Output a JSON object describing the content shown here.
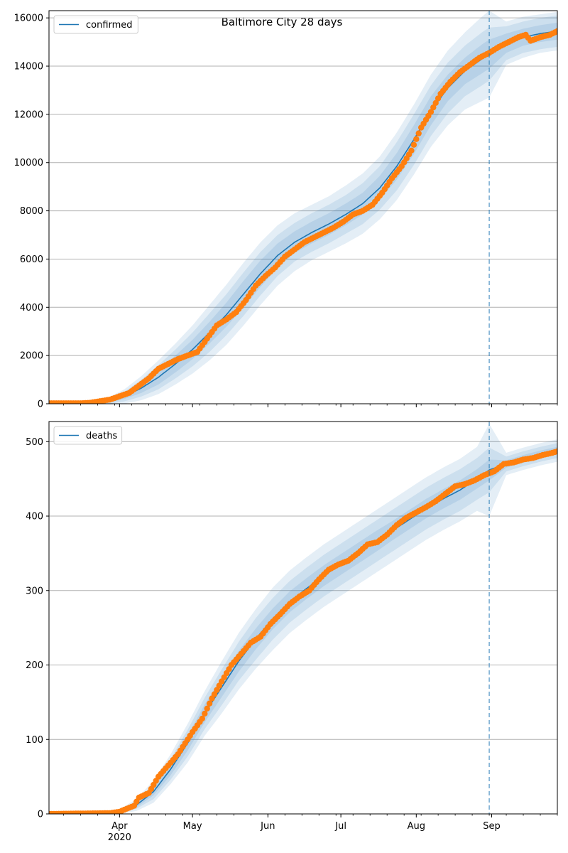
{
  "figure": {
    "suptitle": "Baltimore City 28 days"
  },
  "colors": {
    "model_line": "#1f77b4",
    "band": "#1f77b4",
    "observed": "#ff7f0e",
    "grid": "#b0b0b0",
    "axes": "#000000",
    "vline": "#1f77b4"
  },
  "chart_data": [
    {
      "type": "line",
      "name": "confirmed-panel",
      "legend": {
        "label": "confirmed",
        "placement": "upper-left"
      },
      "xlim": [
        "2020-03-03",
        "2020-09-28"
      ],
      "ylim": [
        0,
        16300
      ],
      "yticks": [
        0,
        2000,
        4000,
        6000,
        8000,
        10000,
        12000,
        14000,
        16000
      ],
      "grid": "y",
      "forecast_start": "2020-08-31",
      "model": {
        "x": [
          "2020-03-03",
          "2020-03-20",
          "2020-03-27",
          "2020-04-03",
          "2020-04-10",
          "2020-04-17",
          "2020-04-24",
          "2020-05-01",
          "2020-05-08",
          "2020-05-15",
          "2020-05-22",
          "2020-05-29",
          "2020-06-05",
          "2020-06-12",
          "2020-06-19",
          "2020-06-26",
          "2020-07-03",
          "2020-07-10",
          "2020-07-17",
          "2020-07-24",
          "2020-07-31",
          "2020-08-07",
          "2020-08-14",
          "2020-08-21",
          "2020-08-28",
          "2020-08-31",
          "2020-09-07",
          "2020-09-14",
          "2020-09-21",
          "2020-09-28"
        ],
        "y": [
          0,
          0,
          80,
          300,
          650,
          1100,
          1650,
          2250,
          2950,
          3700,
          4550,
          5400,
          6150,
          6700,
          7100,
          7450,
          7850,
          8300,
          8950,
          9850,
          10950,
          12150,
          13100,
          13800,
          14300,
          14500,
          14950,
          15200,
          15350,
          15450
        ],
        "band_halfwidths": [
          [
            0,
            0,
            50,
            100,
            200,
            300,
            350,
            400,
            450,
            500,
            550,
            550,
            500,
            450,
            450,
            450,
            450,
            450,
            500,
            550,
            600,
            600,
            550,
            550,
            600,
            600,
            400,
            350,
            350,
            350
          ],
          [
            0,
            0,
            100,
            200,
            350,
            500,
            600,
            700,
            800,
            850,
            900,
            900,
            850,
            800,
            800,
            800,
            800,
            850,
            900,
            1000,
            1050,
            1050,
            1050,
            1050,
            1100,
            1100,
            700,
            650,
            650,
            650
          ],
          [
            0,
            0,
            150,
            300,
            500,
            700,
            850,
            1000,
            1150,
            1250,
            1300,
            1300,
            1250,
            1200,
            1150,
            1150,
            1200,
            1250,
            1300,
            1400,
            1450,
            1500,
            1550,
            1600,
            1750,
            1800,
            900,
            850,
            800,
            800
          ]
        ]
      },
      "observed": {
        "x": [
          "2020-03-03",
          "2020-03-16",
          "2020-03-20",
          "2020-03-24",
          "2020-03-28",
          "2020-04-01",
          "2020-04-05",
          "2020-04-09",
          "2020-04-13",
          "2020-04-17",
          "2020-04-21",
          "2020-04-25",
          "2020-04-29",
          "2020-05-03",
          "2020-05-07",
          "2020-05-11",
          "2020-05-15",
          "2020-05-19",
          "2020-05-23",
          "2020-05-27",
          "2020-05-31",
          "2020-06-04",
          "2020-06-08",
          "2020-06-12",
          "2020-06-16",
          "2020-06-20",
          "2020-06-24",
          "2020-06-28",
          "2020-07-02",
          "2020-07-06",
          "2020-07-10",
          "2020-07-14",
          "2020-07-18",
          "2020-07-22",
          "2020-07-26",
          "2020-07-30",
          "2020-08-03",
          "2020-08-07",
          "2020-08-11",
          "2020-08-15",
          "2020-08-19",
          "2020-08-23",
          "2020-08-27",
          "2020-08-31",
          "2020-09-04",
          "2020-09-08",
          "2020-09-12",
          "2020-09-15",
          "2020-09-17",
          "2020-09-21",
          "2020-09-25",
          "2020-09-28"
        ],
        "y": [
          20,
          20,
          40,
          110,
          170,
          310,
          450,
          750,
          1050,
          1450,
          1650,
          1850,
          2000,
          2150,
          2700,
          3250,
          3500,
          3800,
          4300,
          4900,
          5300,
          5650,
          6100,
          6400,
          6700,
          6900,
          7100,
          7300,
          7550,
          7850,
          8000,
          8250,
          8750,
          9350,
          9850,
          10500,
          11450,
          12100,
          12850,
          13350,
          13750,
          14050,
          14350,
          14550,
          14800,
          15000,
          15200,
          15300,
          15050,
          15200,
          15300,
          15450
        ]
      }
    },
    {
      "type": "line",
      "name": "deaths-panel",
      "legend": {
        "label": "deaths",
        "placement": "upper-left"
      },
      "xlim": [
        "2020-03-03",
        "2020-09-28"
      ],
      "ylim": [
        0,
        527
      ],
      "yticks": [
        0,
        100,
        200,
        300,
        400,
        500
      ],
      "xtick_labels": [
        "Apr",
        "May",
        "Jun",
        "Jul",
        "Aug",
        "Sep"
      ],
      "xtick_dates": [
        "2020-04-01",
        "2020-05-01",
        "2020-06-01",
        "2020-07-01",
        "2020-08-01",
        "2020-09-01"
      ],
      "x_year_label": "2020",
      "grid": "y",
      "forecast_start": "2020-08-31",
      "model": {
        "x": [
          "2020-03-03",
          "2020-03-25",
          "2020-04-01",
          "2020-04-08",
          "2020-04-15",
          "2020-04-22",
          "2020-04-29",
          "2020-05-06",
          "2020-05-13",
          "2020-05-20",
          "2020-05-27",
          "2020-06-03",
          "2020-06-10",
          "2020-06-17",
          "2020-06-24",
          "2020-07-01",
          "2020-07-08",
          "2020-07-15",
          "2020-07-22",
          "2020-07-29",
          "2020-08-05",
          "2020-08-12",
          "2020-08-19",
          "2020-08-26",
          "2020-08-31",
          "2020-09-07",
          "2020-09-14",
          "2020-09-21",
          "2020-09-28"
        ],
        "y": [
          0,
          0,
          3,
          12,
          30,
          60,
          95,
          135,
          170,
          205,
          235,
          262,
          285,
          303,
          320,
          335,
          350,
          365,
          380,
          395,
          410,
          423,
          435,
          450,
          462,
          470,
          477,
          483,
          488
        ],
        "band_halfwidths": [
          [
            0,
            0,
            1,
            3,
            5,
            8,
            10,
            12,
            13,
            14,
            14,
            14,
            14,
            14,
            14,
            14,
            14,
            14,
            13,
            13,
            13,
            13,
            13,
            13,
            14,
            5,
            5,
            5,
            5
          ],
          [
            0,
            0,
            2,
            5,
            10,
            14,
            18,
            21,
            24,
            26,
            28,
            28,
            28,
            28,
            28,
            28,
            28,
            28,
            28,
            28,
            28,
            28,
            28,
            28,
            30,
            10,
            10,
            10,
            10
          ],
          [
            0,
            0,
            3,
            8,
            15,
            20,
            26,
            30,
            35,
            38,
            40,
            42,
            42,
            42,
            42,
            42,
            42,
            42,
            42,
            42,
            42,
            42,
            42,
            43,
            62,
            15,
            15,
            15,
            15
          ]
        ]
      },
      "observed": {
        "x": [
          "2020-03-03",
          "2020-03-28",
          "2020-04-01",
          "2020-04-04",
          "2020-04-07",
          "2020-04-09",
          "2020-04-13",
          "2020-04-17",
          "2020-04-21",
          "2020-04-25",
          "2020-04-29",
          "2020-05-01",
          "2020-05-05",
          "2020-05-09",
          "2020-05-13",
          "2020-05-17",
          "2020-05-21",
          "2020-05-25",
          "2020-05-29",
          "2020-06-02",
          "2020-06-06",
          "2020-06-10",
          "2020-06-14",
          "2020-06-18",
          "2020-06-22",
          "2020-06-26",
          "2020-06-30",
          "2020-07-04",
          "2020-07-08",
          "2020-07-12",
          "2020-07-16",
          "2020-07-20",
          "2020-07-24",
          "2020-07-28",
          "2020-08-01",
          "2020-08-05",
          "2020-08-09",
          "2020-08-13",
          "2020-08-17",
          "2020-08-21",
          "2020-08-25",
          "2020-08-29",
          "2020-09-02",
          "2020-09-06",
          "2020-09-10",
          "2020-09-14",
          "2020-09-18",
          "2020-09-22",
          "2020-09-26",
          "2020-09-28"
        ],
        "y": [
          0,
          1,
          3,
          7,
          11,
          22,
          28,
          50,
          65,
          80,
          100,
          110,
          128,
          155,
          178,
          200,
          215,
          230,
          238,
          255,
          268,
          282,
          292,
          300,
          315,
          328,
          335,
          340,
          350,
          362,
          365,
          375,
          388,
          398,
          405,
          412,
          420,
          430,
          440,
          443,
          448,
          455,
          460,
          470,
          472,
          476,
          478,
          482,
          485,
          487
        ]
      }
    }
  ]
}
